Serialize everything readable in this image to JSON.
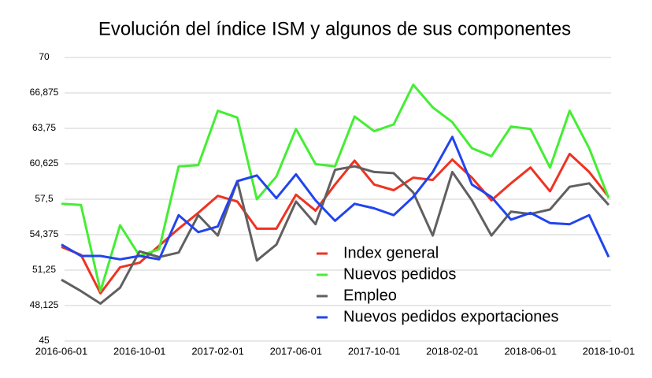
{
  "chart_data": {
    "type": "line",
    "title": "Evolución del índice ISM y algunos de sus componentes",
    "categories": [
      "2016-06-01",
      null,
      null,
      null,
      "2016-10-01",
      null,
      null,
      null,
      "2017-02-01",
      null,
      null,
      null,
      "2017-06-01",
      null,
      null,
      null,
      "2017-10-01",
      null,
      null,
      null,
      "2018-02-01",
      null,
      null,
      null,
      "2018-06-01",
      null,
      null,
      null,
      "2018-10-01"
    ],
    "series": [
      {
        "name": "Index general",
        "color": "#ee3322",
        "values": [
          53.3,
          52.6,
          49.2,
          51.5,
          51.9,
          53.4,
          54.9,
          56.3,
          57.8,
          57.3,
          54.9,
          54.9,
          57.9,
          56.5,
          58.8,
          60.9,
          58.8,
          58.3,
          59.4,
          59.2,
          61.0,
          59.4,
          57.4,
          58.9,
          60.3,
          58.2,
          61.5,
          59.9,
          57.7
        ]
      },
      {
        "name": "Nuevos pedidos",
        "color": "#44ee33",
        "values": [
          57.1,
          57.0,
          49.4,
          55.2,
          52.5,
          53.1,
          60.4,
          60.5,
          65.3,
          64.7,
          57.5,
          59.5,
          63.7,
          60.6,
          60.4,
          64.8,
          63.5,
          64.1,
          67.6,
          65.6,
          64.3,
          62.0,
          61.3,
          63.9,
          63.7,
          60.3,
          65.3,
          62.0,
          57.6
        ]
      },
      {
        "name": "Empleo",
        "color": "#606060",
        "values": [
          50.4,
          49.4,
          48.3,
          49.7,
          52.9,
          52.4,
          52.8,
          56.1,
          54.3,
          59.1,
          52.1,
          53.5,
          57.3,
          55.3,
          60.1,
          60.4,
          59.9,
          59.8,
          58.1,
          54.3,
          59.9,
          57.4,
          54.3,
          56.4,
          56.2,
          56.6,
          58.6,
          58.9,
          57.0
        ]
      },
      {
        "name": "Nuevos pedidos exportaciones",
        "color": "#2244ee",
        "values": [
          53.5,
          52.5,
          52.5,
          52.2,
          52.5,
          52.2,
          56.1,
          54.6,
          55.1,
          59.1,
          59.6,
          57.6,
          59.7,
          57.4,
          55.6,
          57.1,
          56.7,
          56.1,
          57.7,
          59.9,
          63.0,
          58.8,
          57.7,
          55.7,
          56.3,
          55.4,
          55.3,
          56.1,
          52.4
        ]
      }
    ],
    "ylim": [
      45,
      70
    ],
    "yticks": [
      45,
      {
        "value": 48.125,
        "label": "48,125"
      },
      {
        "value": 51.25,
        "label": "51,25"
      },
      {
        "value": 54.375,
        "label": "54,375"
      },
      {
        "value": 57.5,
        "label": "57,5"
      },
      {
        "value": 60.625,
        "label": "60,625"
      },
      {
        "value": 63.75,
        "label": "63,75"
      },
      {
        "value": 66.875,
        "label": "66,875"
      },
      70
    ],
    "grid": true,
    "legend": "bottom-right"
  }
}
